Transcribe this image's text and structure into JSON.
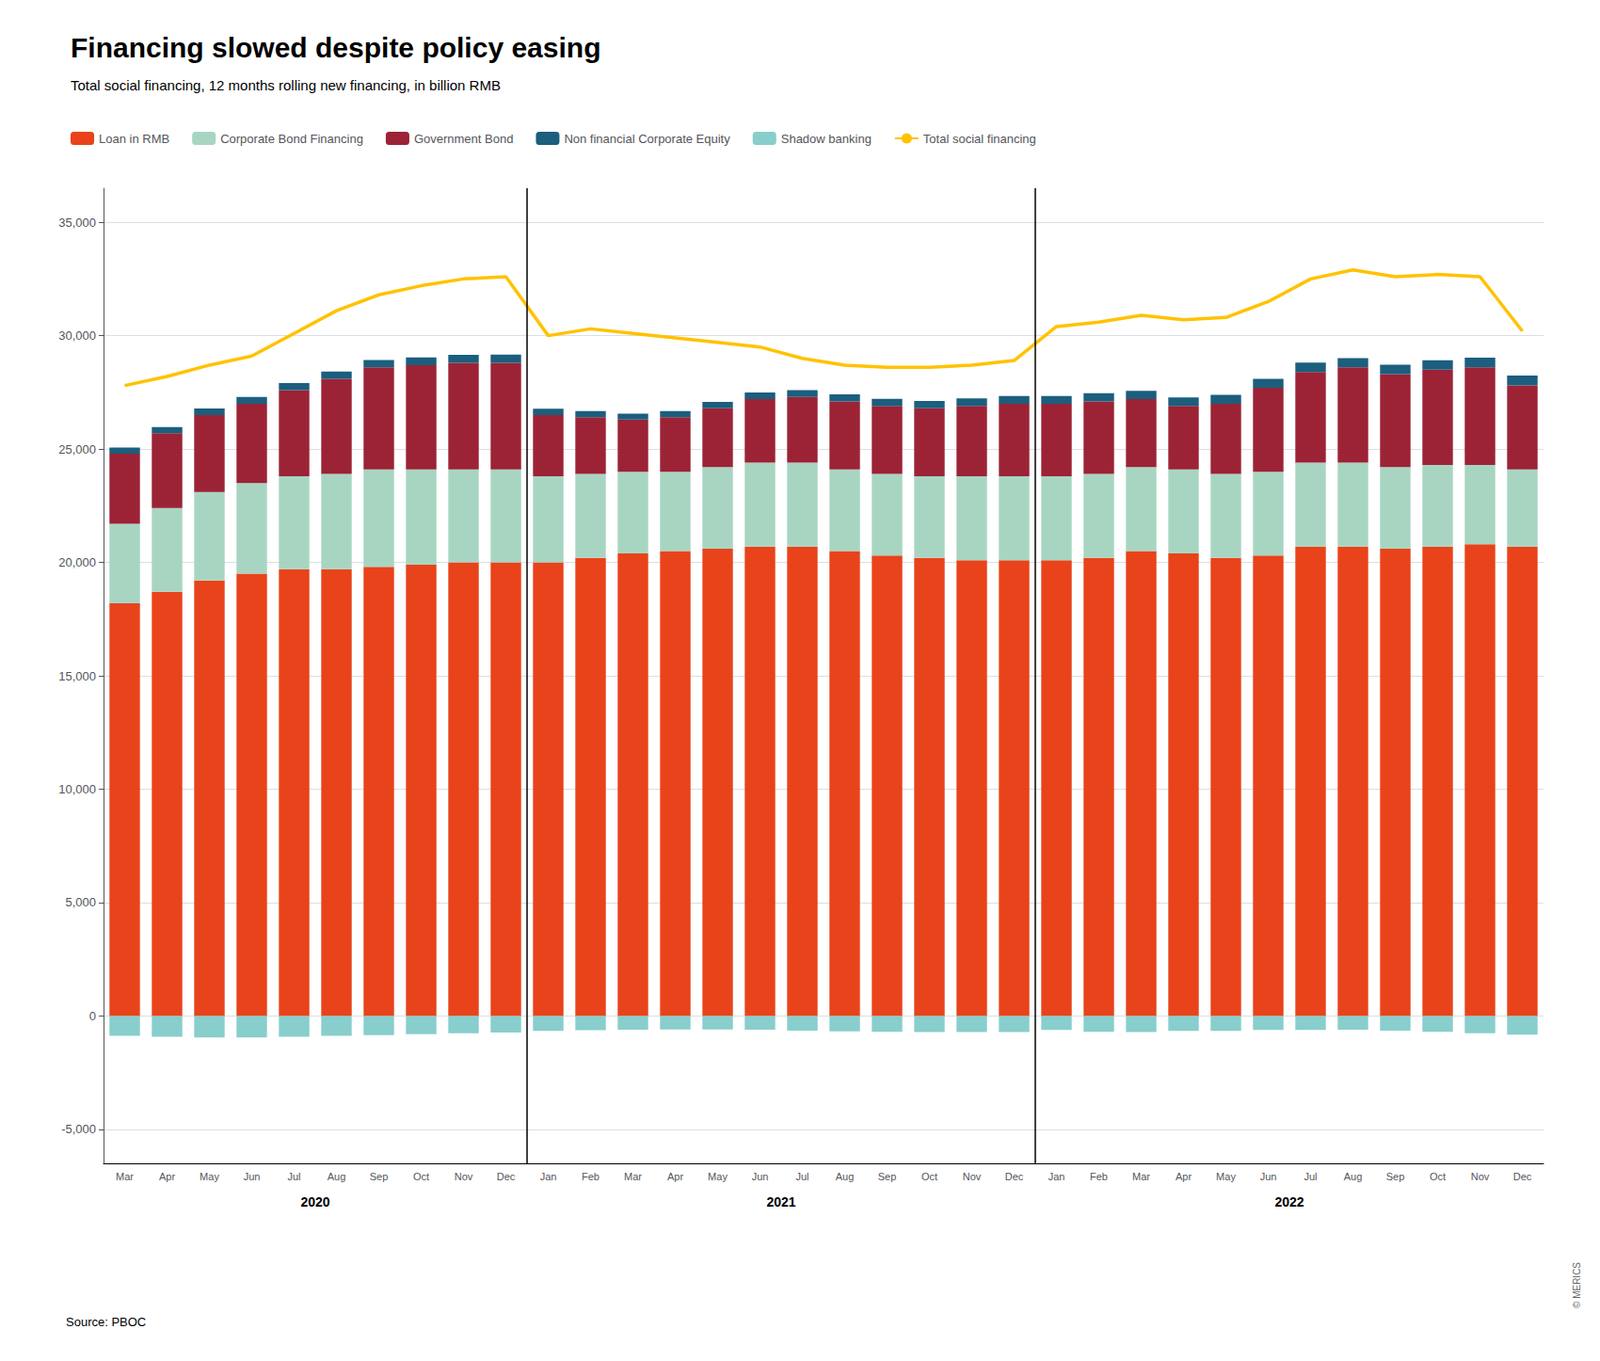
{
  "chart_data": {
    "type": "bar",
    "title": "Financing slowed despite policy easing",
    "subtitle": "Total social financing, 12 months rolling new financing, in billion RMB",
    "source": "Source: PBOC",
    "credit": "© MERICS",
    "categories": [
      "Mar",
      "Apr",
      "May",
      "Jun",
      "Jul",
      "Aug",
      "Sep",
      "Oct",
      "Nov",
      "Dec",
      "Jan",
      "Feb",
      "Mar",
      "Apr",
      "May",
      "Jun",
      "Jul",
      "Aug",
      "Sep",
      "Oct",
      "Nov",
      "Dec",
      "Jan",
      "Feb",
      "Mar",
      "Apr",
      "May",
      "Jun",
      "Jul",
      "Aug",
      "Sep",
      "Oct",
      "Nov",
      "Dec"
    ],
    "annotations": [
      {
        "text": "2020",
        "categories": [
          "Mar",
          "Apr",
          "May",
          "Jun",
          "Jul",
          "Aug",
          "Sep",
          "Oct",
          "Nov",
          "Dec"
        ]
      },
      {
        "text": "2021",
        "categories": [
          "Jan",
          "Feb",
          "Mar",
          "Apr",
          "May",
          "Jun",
          "Jul",
          "Aug",
          "Sep",
          "Oct",
          "Nov",
          "Dec"
        ]
      },
      {
        "text": "2022",
        "categories": [
          "Jan",
          "Feb",
          "Mar",
          "Apr",
          "May",
          "Jun",
          "Jul",
          "Aug",
          "Sep",
          "Oct",
          "Nov",
          "Dec"
        ]
      }
    ],
    "stacked": true,
    "series": [
      {
        "name": "Loan in RMB",
        "type": "bar",
        "color": "#E8431A",
        "values": [
          18200,
          18700,
          19200,
          19500,
          19700,
          19700,
          19800,
          19900,
          20000,
          20000,
          20000,
          20200,
          20400,
          20500,
          20600,
          20700,
          20700,
          20500,
          20300,
          20200,
          20100,
          20100,
          20100,
          20200,
          20500,
          20400,
          20200,
          20300,
          20700,
          20700,
          20600,
          20700,
          20800,
          20700
        ]
      },
      {
        "name": "Corporate Bond Financing",
        "type": "bar",
        "color": "#A8D5C2",
        "values": [
          3500,
          3700,
          3900,
          4000,
          4100,
          4200,
          4300,
          4200,
          4100,
          4100,
          3800,
          3700,
          3600,
          3500,
          3600,
          3700,
          3700,
          3600,
          3600,
          3600,
          3700,
          3700,
          3700,
          3700,
          3700,
          3700,
          3700,
          3700,
          3700,
          3700,
          3600,
          3600,
          3500,
          3400
        ]
      },
      {
        "name": "Government Bond",
        "type": "bar",
        "color": "#9B2335",
        "values": [
          3100,
          3300,
          3400,
          3500,
          3800,
          4200,
          4500,
          4600,
          4700,
          4700,
          2700,
          2500,
          2300,
          2400,
          2600,
          2800,
          2900,
          3000,
          3000,
          3000,
          3100,
          3200,
          3200,
          3200,
          3000,
          2800,
          3100,
          3700,
          4000,
          4200,
          4100,
          4200,
          4300,
          3700
        ]
      },
      {
        "name": "Non financial Corporate Equity",
        "type": "bar",
        "color": "#1B5E7E",
        "values": [
          260,
          270,
          290,
          300,
          310,
          320,
          330,
          340,
          350,
          360,
          280,
          270,
          260,
          270,
          280,
          290,
          300,
          310,
          310,
          320,
          330,
          340,
          340,
          360,
          370,
          380,
          390,
          400,
          410,
          410,
          420,
          420,
          430,
          440
        ]
      },
      {
        "name": "Shadow banking",
        "type": "bar",
        "color": "#87CECC",
        "values": [
          -880,
          -920,
          -950,
          -950,
          -920,
          -880,
          -840,
          -800,
          -760,
          -730,
          -660,
          -630,
          -610,
          -600,
          -600,
          -610,
          -650,
          -680,
          -700,
          -710,
          -710,
          -710,
          -620,
          -700,
          -710,
          -660,
          -660,
          -620,
          -620,
          -610,
          -650,
          -700,
          -760,
          -820
        ]
      },
      {
        "name": "Total social financing",
        "type": "line",
        "color": "#FFC200",
        "values": [
          27800,
          28200,
          28700,
          29100,
          30100,
          31100,
          31800,
          32200,
          32500,
          32600,
          30000,
          30300,
          30100,
          29900,
          29700,
          29500,
          29000,
          28700,
          28600,
          28600,
          28700,
          28900,
          30400,
          30600,
          30900,
          30700,
          30800,
          31500,
          32500,
          32900,
          32600,
          32700,
          32600,
          30200
        ]
      }
    ],
    "ylim": [
      -6500,
      36500
    ],
    "yticks": [
      {
        "value": -5000,
        "label": "-5,000"
      },
      0,
      {
        "value": 5000,
        "label": "5,000"
      },
      {
        "value": 10000,
        "label": "10,000"
      },
      {
        "value": 15000,
        "label": "15,000"
      },
      {
        "value": 20000,
        "label": "20,000"
      },
      {
        "value": 25000,
        "label": "25,000"
      },
      {
        "value": 30000,
        "label": "30,000"
      },
      {
        "value": 35000,
        "label": "35,000"
      }
    ],
    "grid": true,
    "legend": "upper left"
  }
}
